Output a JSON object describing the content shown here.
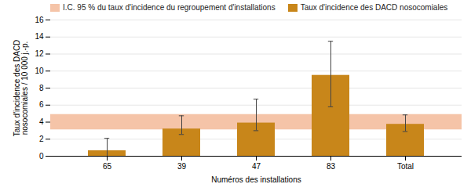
{
  "chart_data": {
    "type": "bar",
    "categories": [
      "65",
      "39",
      "47",
      "83",
      "Total"
    ],
    "series": [
      {
        "name": "Taux d'incidence des DACD nosocomiales",
        "color": "#C8861A",
        "values": [
          0.65,
          3.2,
          3.9,
          9.5,
          3.75
        ],
        "error_low": [
          0.65,
          0.65,
          0.9,
          3.7,
          0.85
        ],
        "error_high": [
          1.45,
          1.55,
          2.8,
          4.0,
          1.1
        ]
      }
    ],
    "band": {
      "name": "I.C. 95 % du taux d'incidence du regroupement d'installations",
      "color": "#F5C4A8",
      "ymin": 3.1,
      "ymax": 4.9
    },
    "xlabel": "Numéros des installations",
    "ylabel": "Taux d'incidence des DACD\nnosocomiales / 10 000 j.-p.",
    "ylim": [
      0,
      16
    ],
    "yticks": [
      0,
      2,
      4,
      6,
      8,
      10,
      12,
      14,
      16
    ],
    "grid": true,
    "legend": "upper left"
  }
}
